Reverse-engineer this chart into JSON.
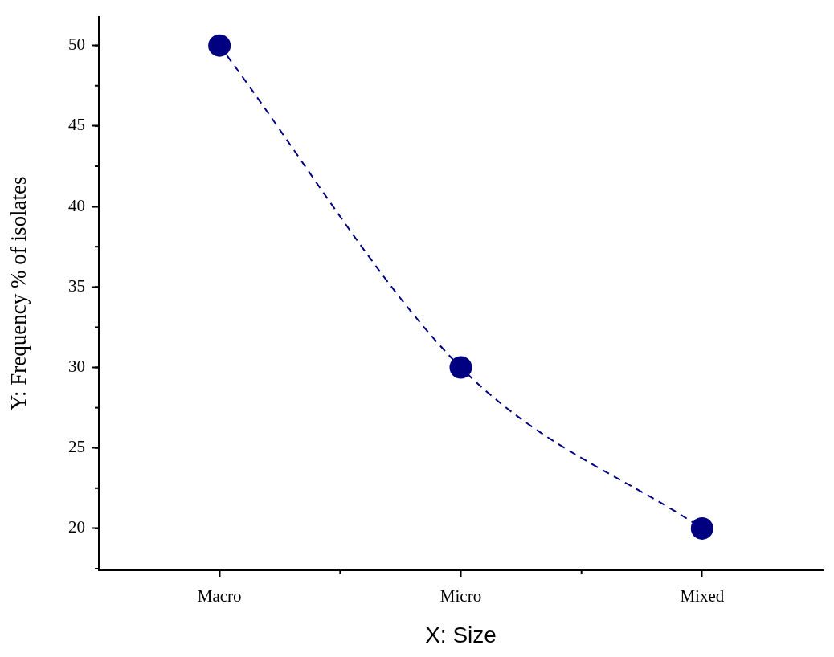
{
  "chart_data": {
    "type": "line",
    "xlabel": "X: Size",
    "ylabel": "Y: Frequency % of isolates",
    "categories": [
      "Macro",
      "Micro",
      "Mixed"
    ],
    "series": [
      {
        "color": "#000080",
        "values": [
          50,
          30,
          20
        ]
      }
    ],
    "ylim": [
      17.4,
      51.8
    ],
    "yticks": [
      20,
      25,
      30,
      35,
      40,
      45,
      50
    ],
    "grid": false,
    "legend": false,
    "marker": "circle",
    "line_style": "dashed"
  }
}
